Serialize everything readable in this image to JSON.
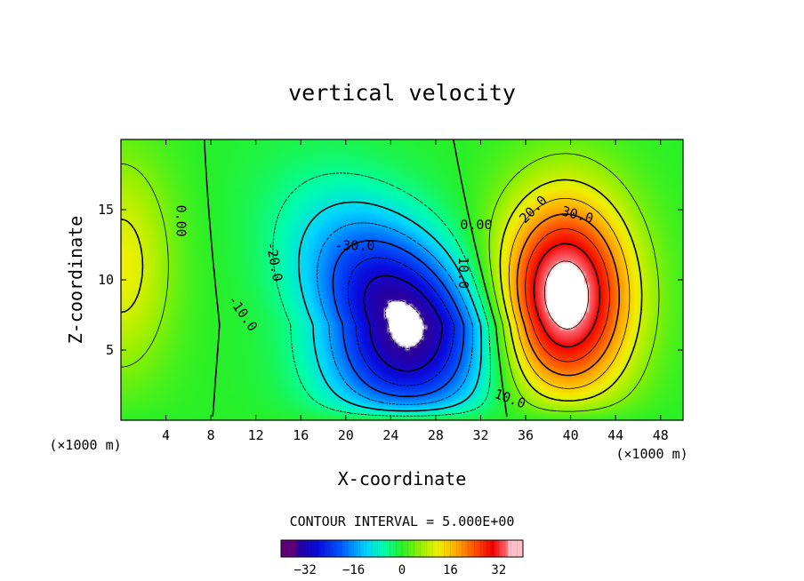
{
  "chart_data": {
    "type": "heatmap",
    "title": "vertical velocity",
    "xlabel": "X-coordinate",
    "ylabel": "Z-coordinate",
    "x_unit_left": "(×1000 m)",
    "x_unit_right": "(×1000 m)",
    "xlim": [
      0,
      50
    ],
    "ylim": [
      0,
      20
    ],
    "xticks": [
      4,
      8,
      12,
      16,
      20,
      24,
      28,
      32,
      36,
      40,
      44,
      48
    ],
    "yticks": [
      5,
      10,
      15
    ],
    "contour_interval_label": "CONTOUR INTERVAL = 5.000E+00",
    "contour_interval": 5,
    "contour_labels": [
      {
        "text": "0.00",
        "x": 5.3,
        "y": 14.2,
        "rotate": 90
      },
      {
        "text": "-10.0",
        "x": 10.8,
        "y": 7.6,
        "rotate": 55
      },
      {
        "text": "-20.0",
        "x": 13.6,
        "y": 11.3,
        "rotate": 80
      },
      {
        "text": "-30.0",
        "x": 20.8,
        "y": 12.4,
        "rotate": 0
      },
      {
        "text": "10.0",
        "x": 30.4,
        "y": 10.5,
        "rotate": 90
      },
      {
        "text": "0.00",
        "x": 31.6,
        "y": 13.9,
        "rotate": 0
      },
      {
        "text": "20.0",
        "x": 36.7,
        "y": 15.0,
        "rotate": -45
      },
      {
        "text": "30.0",
        "x": 40.6,
        "y": 14.6,
        "rotate": 15
      },
      {
        "text": "10.0",
        "x": 34.6,
        "y": 1.5,
        "rotate": 20
      }
    ],
    "fields": {
      "negative_cell": {
        "center": [
          25.5,
          6.8
        ],
        "peak": -37,
        "note": "white region below -35"
      },
      "positive_cell": {
        "center": [
          39.5,
          8.8
        ],
        "peak": 40,
        "note": "white region above 35"
      },
      "edge_cell": {
        "center": [
          0,
          11
        ],
        "peak": 12
      }
    },
    "colorbar": {
      "range": [
        -40,
        40
      ],
      "ticks": [
        -32,
        -16,
        0,
        16,
        32
      ],
      "tick_labels": [
        "−32",
        "−16",
        "0",
        "16",
        "32"
      ]
    }
  }
}
